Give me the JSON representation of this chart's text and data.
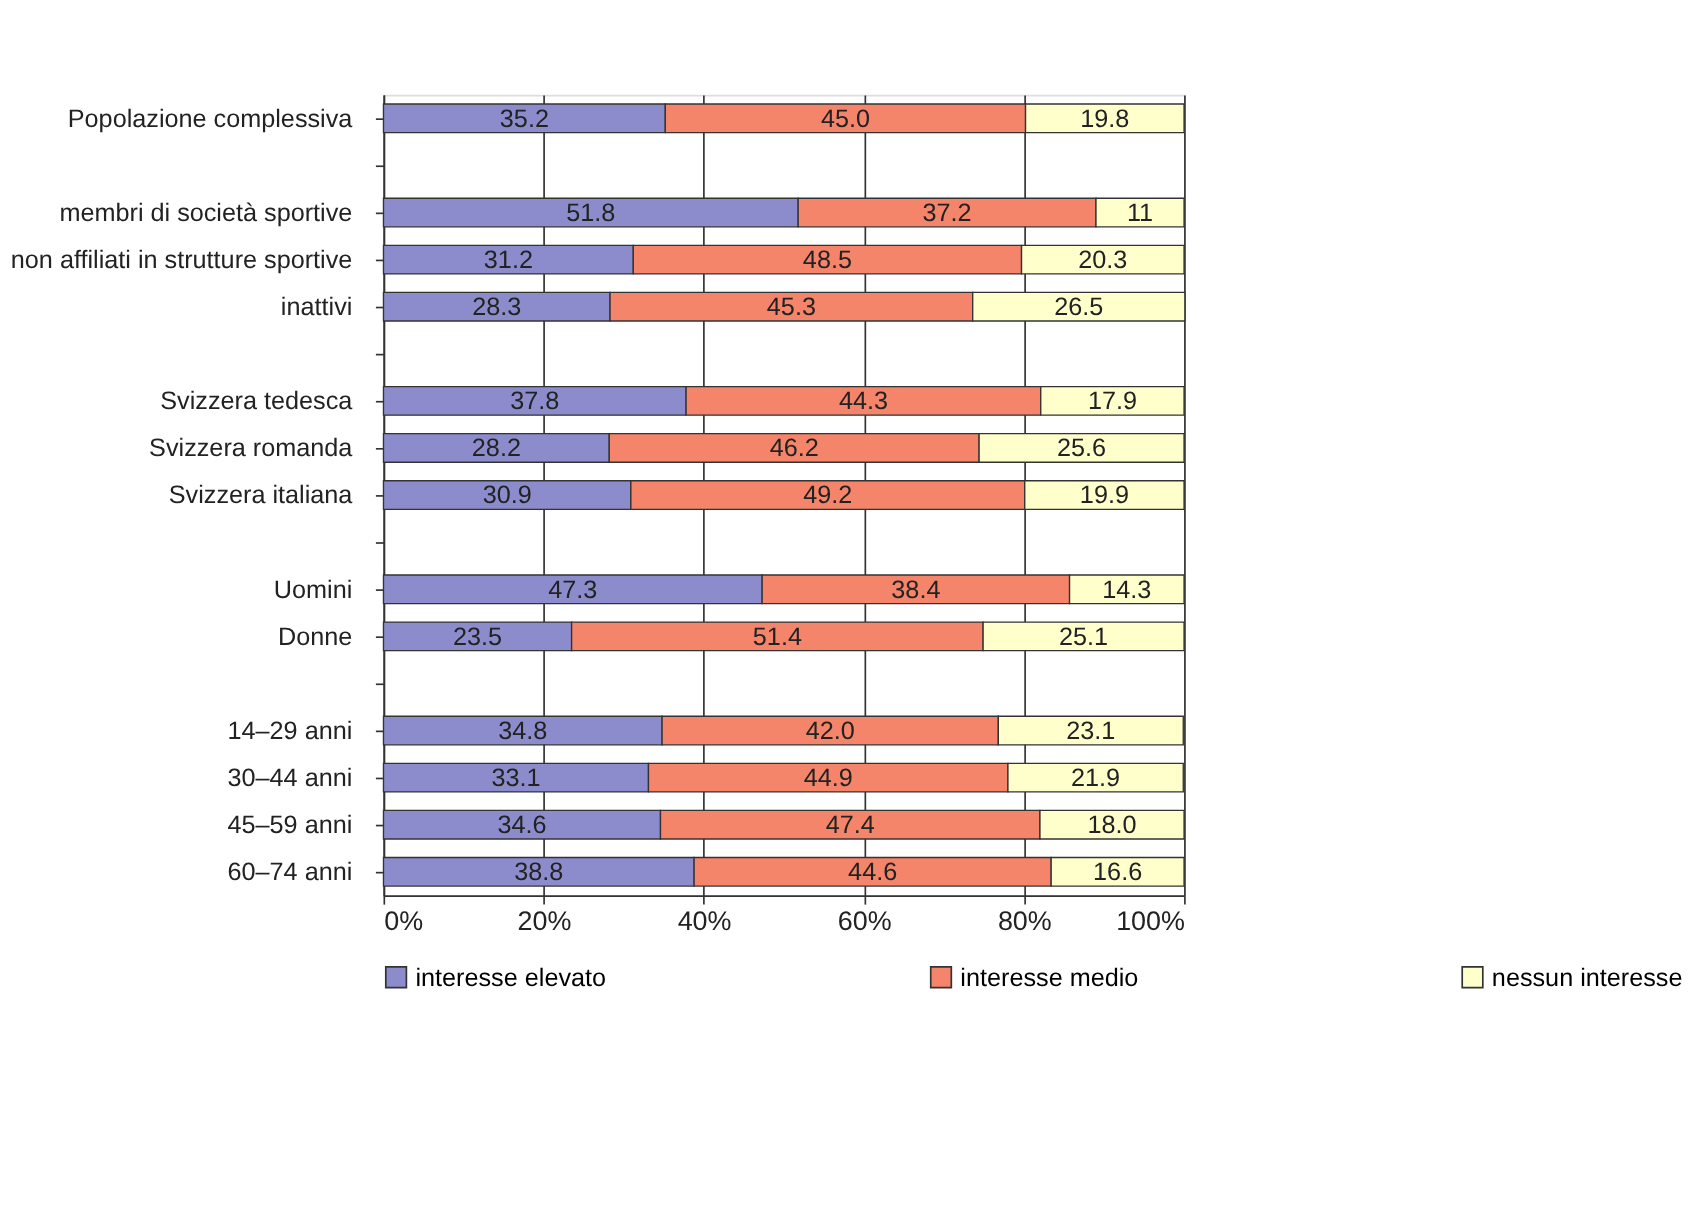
{
  "chart_data": {
    "type": "bar",
    "orientation": "horizontal",
    "stacked": true,
    "categories": [
      "Popolazione complessiva",
      null,
      "membri di società sportive",
      "non affiliati in strutture sportive",
      "inattivi",
      null,
      "Svizzera tedesca",
      "Svizzera romanda",
      "Svizzera italiana",
      null,
      "Uomini",
      "Donne",
      null,
      "14–29 anni",
      "30–44 anni",
      "45–59 anni",
      "60–74 anni"
    ],
    "series": [
      {
        "name": "interesse elevato",
        "color": "#8c8ccc",
        "values": [
          35.2,
          null,
          51.8,
          31.2,
          28.3,
          null,
          37.8,
          28.2,
          30.9,
          null,
          47.3,
          23.5,
          null,
          34.8,
          33.1,
          34.6,
          38.8
        ],
        "value_labels": [
          "35.2",
          null,
          "51.8",
          "31.2",
          "28.3",
          null,
          "37.8",
          "28.2",
          "30.9",
          null,
          "47.3",
          "23.5",
          null,
          "34.8",
          "33.1",
          "34.6",
          "38.8"
        ]
      },
      {
        "name": "interesse medio",
        "color": "#f4846a",
        "values": [
          45.0,
          null,
          37.2,
          48.5,
          45.3,
          null,
          44.3,
          46.2,
          49.2,
          null,
          38.4,
          51.4,
          null,
          42.0,
          44.9,
          47.4,
          44.6
        ],
        "value_labels": [
          "45.0",
          null,
          "37.2",
          "48.5",
          "45.3",
          null,
          "44.3",
          "46.2",
          "49.2",
          null,
          "38.4",
          "51.4",
          null,
          "42.0",
          "44.9",
          "47.4",
          "44.6"
        ]
      },
      {
        "name": "nessun interesse",
        "color": "#ffffcc",
        "values": [
          19.8,
          null,
          11,
          20.3,
          26.5,
          null,
          17.9,
          25.6,
          19.9,
          null,
          14.3,
          25.1,
          null,
          23.1,
          21.9,
          18.0,
          16.6
        ],
        "value_labels": [
          "19.8",
          null,
          "11",
          "20.3",
          "26.5",
          null,
          "17.9",
          "25.6",
          "19.9",
          null,
          "14.3",
          "25.1",
          null,
          "23.1",
          "21.9",
          "18.0",
          "16.6"
        ]
      }
    ],
    "xlim": [
      0,
      100
    ],
    "xticks": [
      {
        "value": 0,
        "label": "0%"
      },
      {
        "value": 20,
        "label": "20%"
      },
      {
        "value": 40,
        "label": "40%"
      },
      {
        "value": 60,
        "label": "60%"
      },
      {
        "value": 80,
        "label": "80%"
      },
      {
        "value": 100,
        "label": "100%"
      }
    ],
    "grid": "x",
    "legend": "bottom"
  }
}
